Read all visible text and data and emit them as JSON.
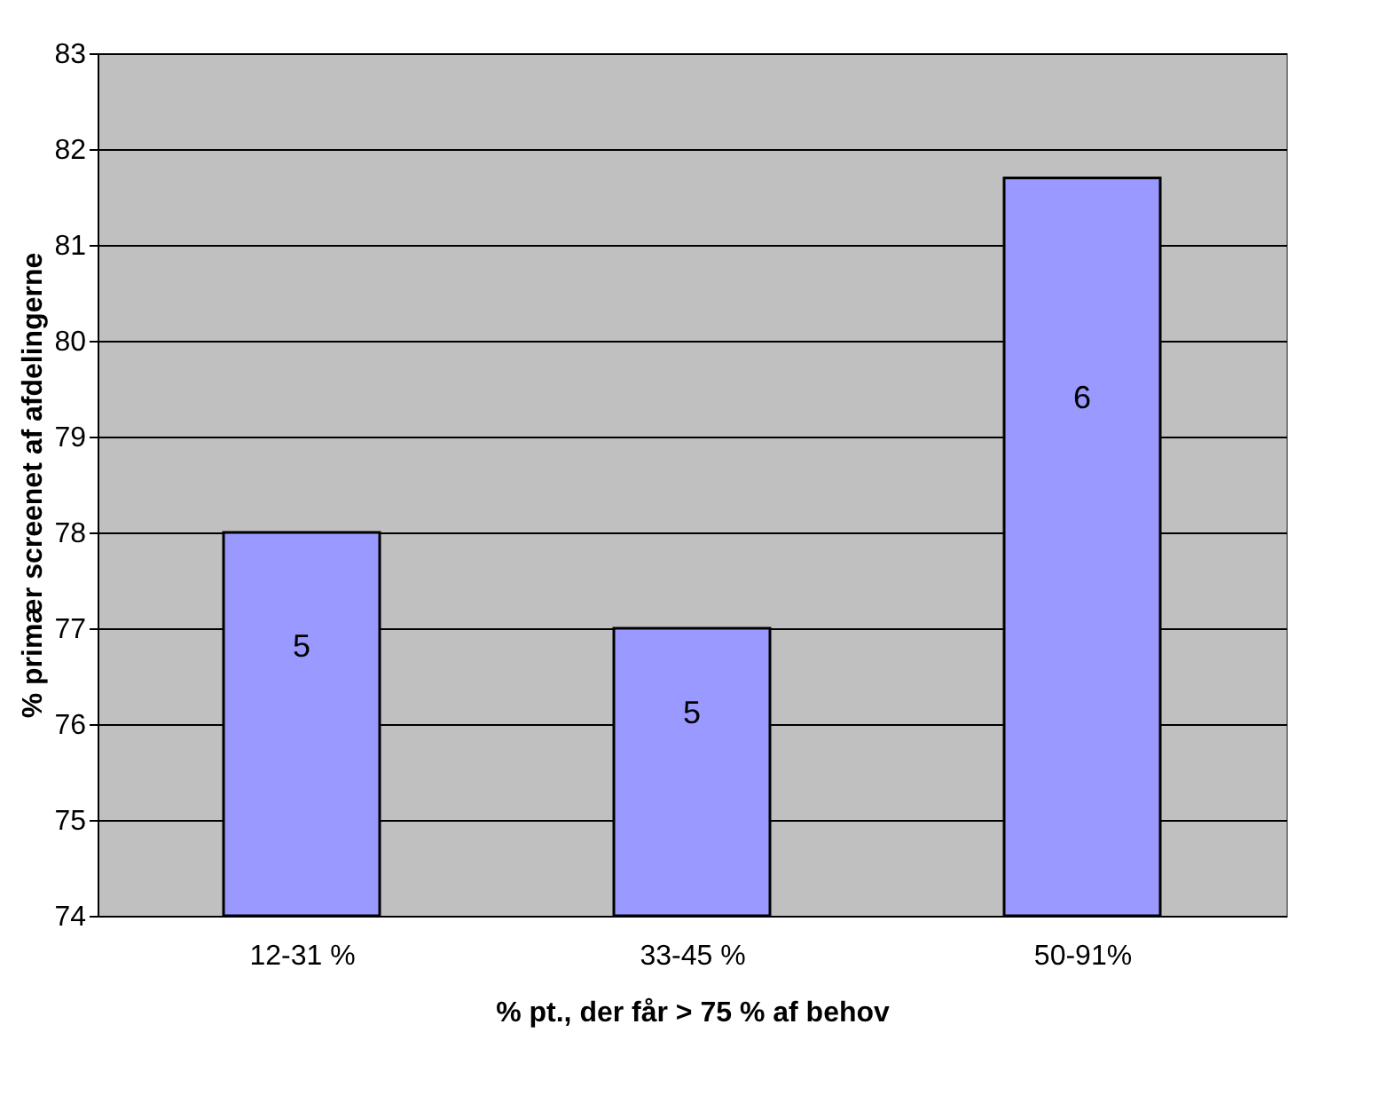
{
  "chart_data": {
    "type": "bar",
    "xlabel": "% pt., der får > 75 % af behov",
    "ylabel": "% primær screenet af afdelingerne",
    "categories": [
      "12-31 %",
      "33-45 %",
      "50-91%"
    ],
    "values": [
      78,
      77,
      81.7
    ],
    "color": "#9999ff",
    "ylim": [
      74,
      83
    ],
    "yticks": [
      74,
      75,
      76,
      77,
      78,
      79,
      80,
      81,
      82,
      83
    ],
    "grid": "y",
    "annotations": [
      "5",
      "5",
      "6"
    ]
  }
}
